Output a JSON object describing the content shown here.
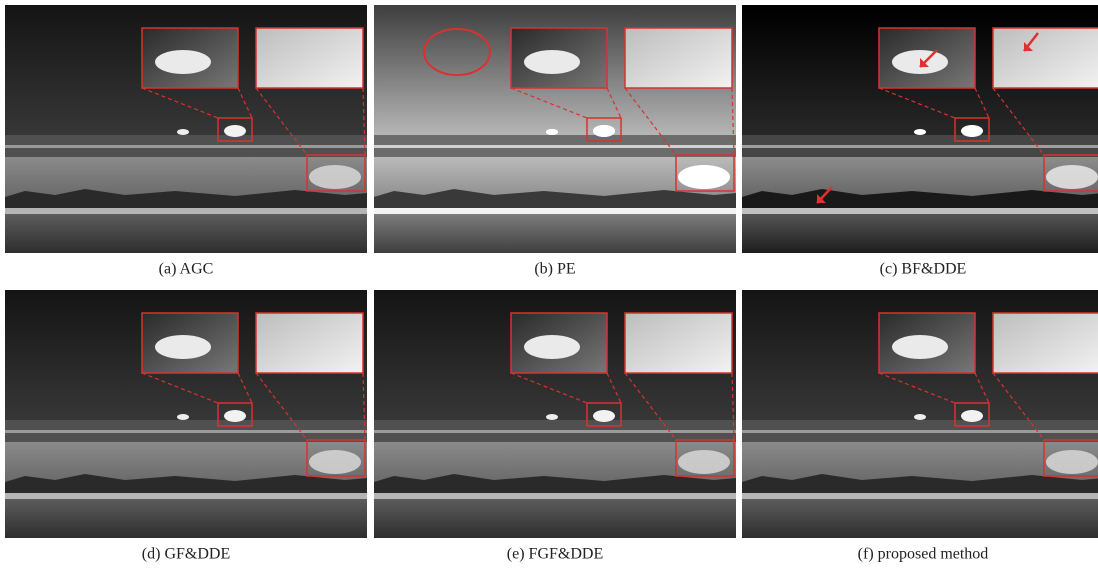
{
  "panels": [
    {
      "caption": "(a) AGC"
    },
    {
      "caption": "(b) PE"
    },
    {
      "caption": "(c) BF&DDE"
    },
    {
      "caption": "(d) GF&DDE"
    },
    {
      "caption": "(e) FGF&DDE"
    },
    {
      "caption": "(f) proposed method"
    }
  ]
}
